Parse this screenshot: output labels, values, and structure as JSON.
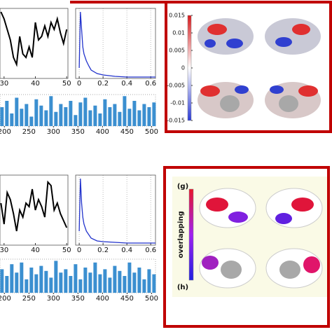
{
  "chart_data": [
    {
      "type": "line",
      "color": "#000000",
      "x": [
        29,
        30,
        31,
        32,
        33,
        34,
        35,
        36,
        37,
        38,
        39,
        40,
        41,
        42,
        43,
        44,
        45,
        46,
        47,
        48,
        49,
        50
      ],
      "values": [
        0.95,
        0.85,
        0.7,
        0.55,
        0.3,
        0.2,
        0.6,
        0.35,
        0.3,
        0.45,
        0.3,
        0.8,
        0.55,
        0.6,
        0.75,
        0.6,
        0.8,
        0.7,
        0.85,
        0.65,
        0.5,
        0.7
      ],
      "xlim": [
        28.7,
        50.4
      ],
      "xticks": [
        30,
        40,
        50
      ],
      "ylim": [
        0,
        1
      ],
      "grid": false
    },
    {
      "type": "line",
      "color": "#2233cc",
      "x": [
        0,
        0.01,
        0.02,
        0.03,
        0.04,
        0.06,
        0.08,
        0.1,
        0.15,
        0.2,
        0.3,
        0.4,
        0.5,
        0.6,
        0.64
      ],
      "values": [
        0.15,
        0.95,
        0.7,
        0.45,
        0.35,
        0.25,
        0.18,
        0.12,
        0.07,
        0.05,
        0.03,
        0.02,
        0.02,
        0.02,
        0.02
      ],
      "xlim": [
        -0.03,
        0.64
      ],
      "xticks": [
        0,
        0.2,
        0.4,
        0.6
      ],
      "ylim": [
        0,
        1
      ],
      "grid": true
    },
    {
      "type": "bar",
      "color": "#3b8fd0",
      "x": [
        195,
        205,
        215,
        225,
        235,
        245,
        255,
        265,
        275,
        285,
        295,
        305,
        315,
        325,
        335,
        345,
        355,
        365,
        375,
        385,
        395,
        405,
        415,
        425,
        435,
        445,
        455,
        465,
        475,
        485,
        495,
        505
      ],
      "values": [
        0.6,
        0.8,
        0.4,
        0.9,
        0.55,
        0.7,
        0.3,
        0.85,
        0.65,
        0.5,
        0.95,
        0.45,
        0.7,
        0.6,
        0.8,
        0.35,
        0.75,
        0.9,
        0.5,
        0.65,
        0.4,
        0.85,
        0.6,
        0.7,
        0.45,
        0.95,
        0.55,
        0.8,
        0.5,
        0.7,
        0.6,
        0.75
      ],
      "xlim": [
        191,
        508
      ],
      "xticks": [
        200,
        250,
        300,
        350,
        400,
        450,
        500
      ],
      "ylim": [
        0,
        1
      ]
    },
    {
      "type": "colorbar",
      "colors": [
        "#d7191c",
        "#ffffff",
        "#2c3bd6"
      ],
      "ylim": [
        -0.015,
        0.015
      ],
      "yticks": [
        0.015,
        0.01,
        0.005,
        0,
        -0.005,
        -0.01,
        -0.015
      ]
    },
    {
      "type": "line",
      "color": "#000000",
      "x": [
        29,
        30,
        31,
        32,
        33,
        34,
        35,
        36,
        37,
        38,
        39,
        40,
        41,
        42,
        43,
        44,
        45,
        46,
        47,
        48,
        49,
        50
      ],
      "values": [
        0.6,
        0.3,
        0.75,
        0.65,
        0.45,
        0.2,
        0.5,
        0.4,
        0.6,
        0.55,
        0.8,
        0.5,
        0.65,
        0.55,
        0.4,
        0.9,
        0.85,
        0.5,
        0.6,
        0.45,
        0.35,
        0.25
      ],
      "xlim": [
        28.7,
        50.4
      ],
      "xticks": [
        30,
        40,
        50
      ],
      "ylim": [
        0,
        1
      ],
      "grid": false
    },
    {
      "type": "line",
      "color": "#2233cc",
      "x": [
        0,
        0.01,
        0.02,
        0.03,
        0.04,
        0.06,
        0.08,
        0.1,
        0.15,
        0.2,
        0.3,
        0.4,
        0.5,
        0.6,
        0.64
      ],
      "values": [
        0.2,
        0.95,
        0.6,
        0.4,
        0.3,
        0.2,
        0.15,
        0.1,
        0.06,
        0.05,
        0.04,
        0.03,
        0.03,
        0.03,
        0.03
      ],
      "xlim": [
        -0.03,
        0.64
      ],
      "xticks": [
        0,
        0.2,
        0.4,
        0.6
      ],
      "ylim": [
        0,
        1
      ],
      "grid": true
    },
    {
      "type": "bar",
      "color": "#3b8fd0",
      "x": [
        195,
        205,
        215,
        225,
        235,
        245,
        255,
        265,
        275,
        285,
        295,
        305,
        315,
        325,
        335,
        345,
        355,
        365,
        375,
        385,
        395,
        405,
        415,
        425,
        435,
        445,
        455,
        465,
        475,
        485,
        495,
        505
      ],
      "values": [
        0.7,
        0.5,
        0.85,
        0.6,
        0.9,
        0.4,
        0.75,
        0.55,
        0.8,
        0.65,
        0.45,
        0.95,
        0.6,
        0.7,
        0.5,
        0.85,
        0.4,
        0.75,
        0.6,
        0.9,
        0.55,
        0.7,
        0.45,
        0.8,
        0.65,
        0.5,
        0.9,
        0.6,
        0.75,
        0.4,
        0.7,
        0.55
      ],
      "xlim": [
        191,
        508
      ],
      "xticks": [
        200,
        250,
        300,
        350,
        400,
        450,
        500
      ],
      "ylim": [
        0,
        1
      ]
    },
    {
      "type": "colorbar",
      "colors": [
        "#e8152a",
        "#a020f0",
        "#2020e0"
      ],
      "top_label": "(g)",
      "bottom_label": "(h)",
      "label": "overlapping"
    }
  ]
}
